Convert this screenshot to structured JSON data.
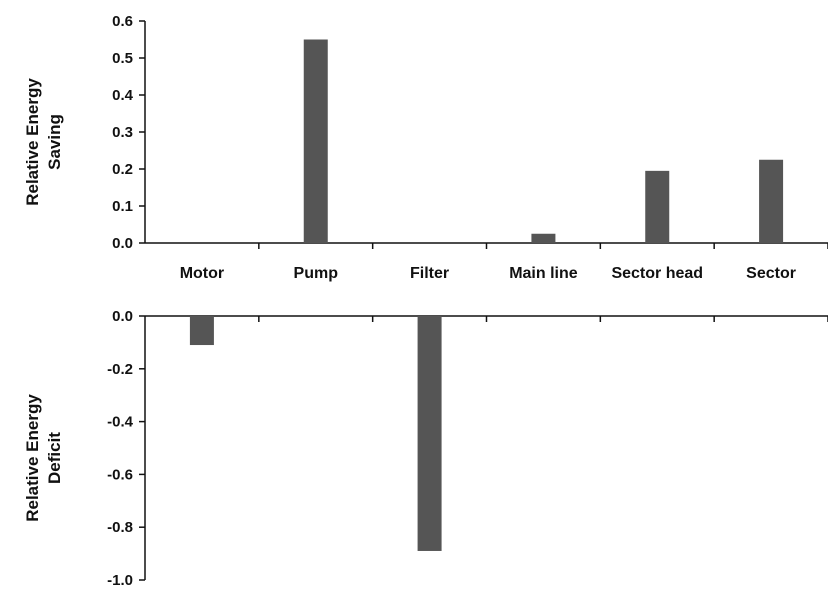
{
  "chart_data": [
    {
      "type": "bar",
      "panel": "top",
      "categories": [
        "Motor",
        "Pump",
        "Filter",
        "Main line",
        "Sector head",
        "Sector"
      ],
      "values": [
        0.0,
        0.55,
        0.0,
        0.025,
        0.195,
        0.225
      ],
      "ylabel_lines": [
        "Relative Energy",
        "Saving"
      ],
      "ylim": [
        0.0,
        0.6
      ],
      "yticks": [
        0.0,
        0.1,
        0.2,
        0.3,
        0.4,
        0.5,
        0.6
      ],
      "ytick_labels": [
        "0.0",
        "0.1",
        "0.2",
        "0.3",
        "0.4",
        "0.5",
        "0.6"
      ],
      "grid": false,
      "bar_color": "#555555"
    },
    {
      "type": "bar",
      "panel": "bottom",
      "categories": [
        "Motor",
        "Pump",
        "Filter",
        "Main line",
        "Sector head",
        "Sector"
      ],
      "values": [
        -0.11,
        0.0,
        -0.89,
        0.0,
        0.0,
        0.0
      ],
      "ylabel_lines": [
        "Relative Energy",
        "Deficit"
      ],
      "ylim": [
        -1.0,
        0.0
      ],
      "yticks": [
        0.0,
        -0.2,
        -0.4,
        -0.6,
        -0.8,
        -1.0
      ],
      "ytick_labels": [
        "0.0",
        "-0.2",
        "-0.4",
        "-0.6",
        "-0.8",
        "-1.0"
      ],
      "grid": false,
      "bar_color": "#555555"
    }
  ]
}
